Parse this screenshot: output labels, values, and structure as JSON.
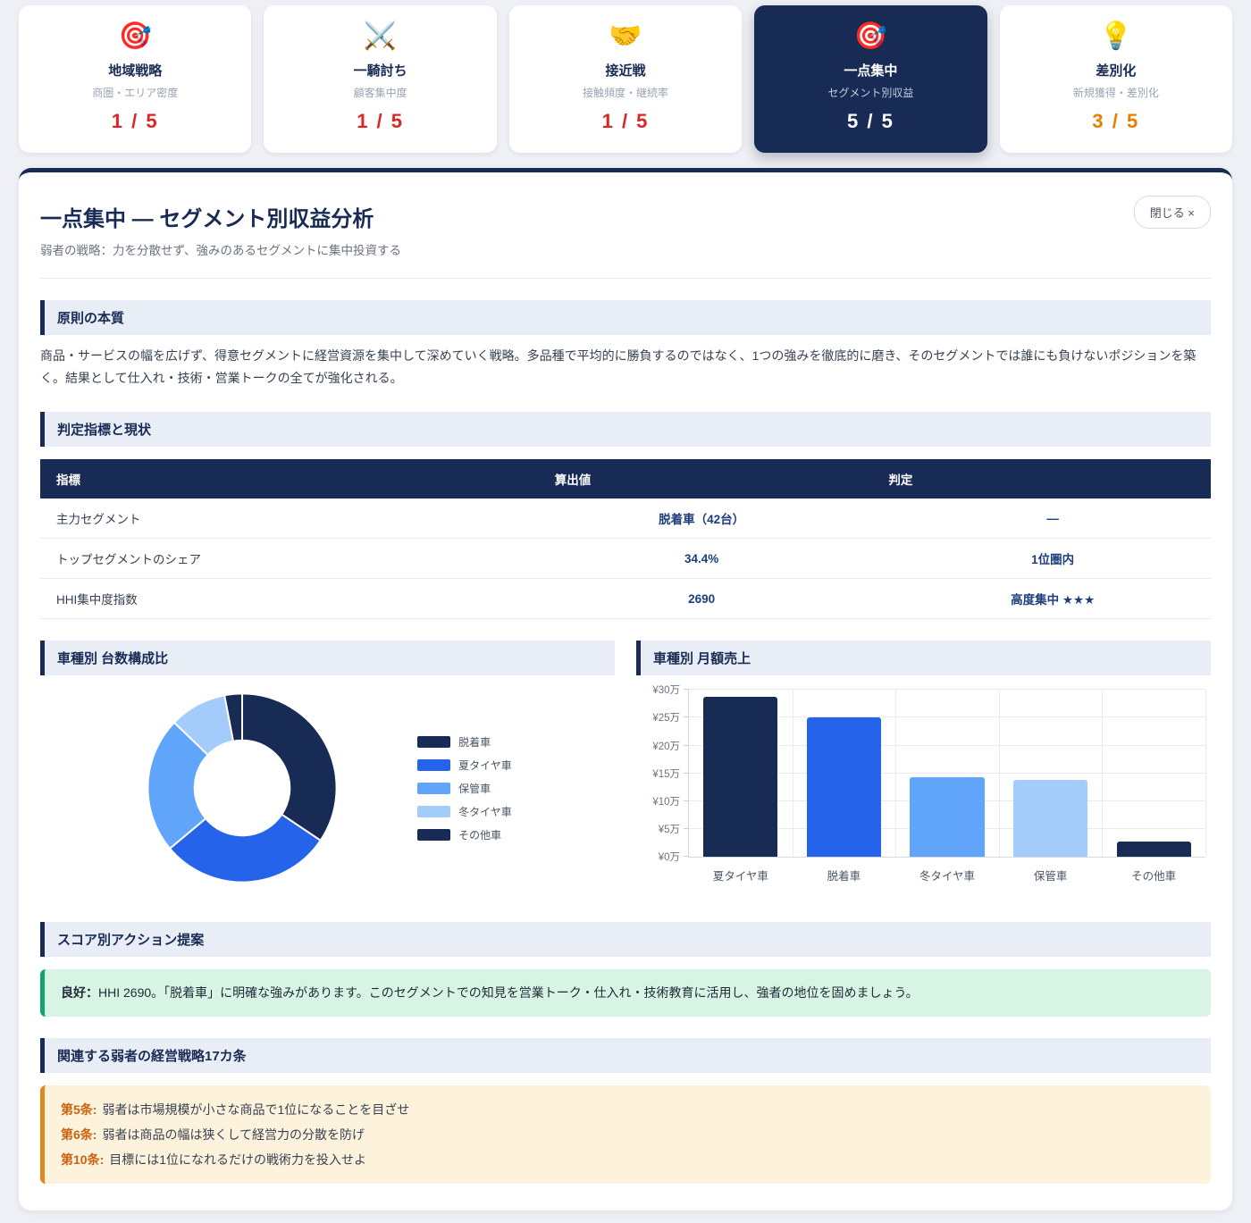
{
  "cards": [
    {
      "icon": "🎯",
      "icon_name": "dartboard-icon",
      "title": "地域戦略",
      "subtitle": "商圏・エリア密度",
      "score": "1 / 5"
    },
    {
      "icon": "⚔️",
      "icon_name": "crossed-swords-icon",
      "title": "一騎討ち",
      "subtitle": "顧客集中度",
      "score": "1 / 5"
    },
    {
      "icon": "🤝",
      "icon_name": "handshake-icon",
      "title": "接近戦",
      "subtitle": "接触頻度・継続率",
      "score": "1 / 5"
    },
    {
      "icon": "🎯",
      "icon_name": "dartboard-icon",
      "title": "一点集中",
      "subtitle": "セグメント別収益",
      "score": "5 / 5"
    },
    {
      "icon": "💡",
      "icon_name": "light-bulb-icon",
      "title": "差別化",
      "subtitle": "新規獲得・差別化",
      "score": "3 / 5"
    }
  ],
  "panel": {
    "title": "一点集中 ― セグメント別収益分析",
    "subtitle": "弱者の戦略：力を分散せず、強みのあるセグメントに集中投資する",
    "close_label": "閉じる ×"
  },
  "sections": {
    "principle": {
      "heading": "原則の本質",
      "body": "商品・サービスの幅を広げず、得意セグメントに経営資源を集中して深めていく戦略。多品種で平均的に勝負するのではなく、1つの強みを徹底的に磨き、そのセグメントでは誰にも負けないポジションを築く。結果として仕入れ・技術・営業トークの全てが強化される。"
    },
    "metrics": {
      "heading": "判定指標と現状",
      "table": {
        "headers": [
          "指標",
          "算出値",
          "判定"
        ],
        "rows": [
          [
            "主力セグメント",
            "脱着車（42台）",
            "—"
          ],
          [
            "トップセグメントのシェア",
            "34.4%",
            "1位圏内"
          ],
          [
            "HHI集中度指数",
            "2690",
            "高度集中 ★★★"
          ]
        ]
      }
    },
    "action": {
      "heading": "スコア別アクション提案",
      "label": "良好：",
      "body": "HHI 2690。「脱着車」に明確な強みがあります。このセグメントでの知見を営業トーク・仕入れ・技術教育に活用し、強者の地位を固めましょう。"
    },
    "articles": {
      "heading": "関連する弱者の経営戦略17カ条",
      "items": [
        {
          "label": "第5条:",
          "text": "弱者は市場規模が小さな商品で1位になることを目ざせ"
        },
        {
          "label": "第6条:",
          "text": "弱者は商品の幅は狭くして経営力の分散を防げ"
        },
        {
          "label": "第10条:",
          "text": "目標には1位になれるだけの戦術力を投入せよ"
        }
      ]
    }
  },
  "chart_data": [
    {
      "type": "pie",
      "donut": true,
      "title": "車種別 台数構成比",
      "categories": [
        "脱着車",
        "夏タイヤ車",
        "保管車",
        "冬タイヤ車",
        "その他車"
      ],
      "values": [
        34.4,
        29.5,
        23.3,
        9.8,
        3.0
      ],
      "unit": "percent",
      "colors": [
        "#172b54",
        "#2563eb",
        "#60a5fa",
        "#a3ccfb",
        "#172b54"
      ],
      "legend_position": "right"
    },
    {
      "type": "bar",
      "title": "車種別 月額売上",
      "categories": [
        "夏タイヤ車",
        "脱着車",
        "冬タイヤ車",
        "保管車",
        "その他車"
      ],
      "values": [
        28.7,
        25.1,
        14.3,
        13.9,
        2.8
      ],
      "unit": "万円",
      "ylim": [
        0,
        30
      ],
      "yticks": [
        0,
        5,
        10,
        15,
        20,
        25,
        30
      ],
      "ytick_labels": [
        "¥0万",
        "¥5万",
        "¥10万",
        "¥15万",
        "¥20万",
        "¥25万",
        "¥30万"
      ],
      "colors": [
        "#172b54",
        "#2563eb",
        "#60a5fa",
        "#a3ccfb",
        "#172b54"
      ],
      "grid": true,
      "legend_position": "none"
    }
  ],
  "colors": {
    "navy": "#172b54",
    "accent_blue": "#2563eb",
    "score_low": "#dc2626",
    "score_mid": "#e67e00",
    "good_green": "#10a56d",
    "rule_orange": "#e0891f",
    "page_bg": "#eef0f5"
  }
}
